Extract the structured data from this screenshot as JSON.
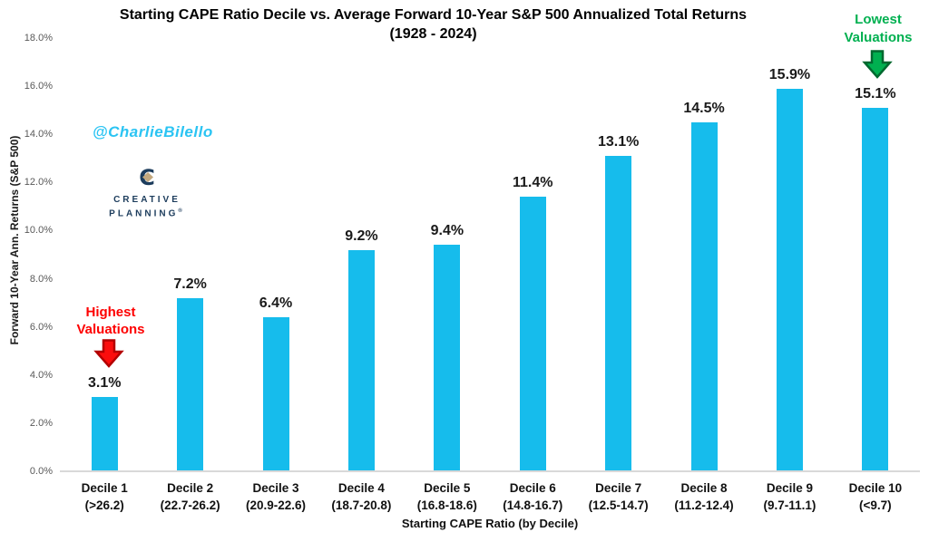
{
  "chart_data": {
    "type": "bar",
    "title": "Starting CAPE Ratio Decile vs. Average Forward 10-Year S&P 500 Annualized Total Returns",
    "subtitle": "(1928 - 2024)",
    "xlabel": "Starting CAPE Ratio (by Decile)",
    "ylabel": "Forward 10-Year Ann. Returns (S&P 500)",
    "categories": [
      "Decile 1",
      "Decile 2",
      "Decile 3",
      "Decile 4",
      "Decile 5",
      "Decile 6",
      "Decile 7",
      "Decile 8",
      "Decile 9",
      "Decile 10"
    ],
    "category_ranges": [
      "(>26.2)",
      "(22.7-26.2)",
      "(20.9-22.6)",
      "(18.7-20.8)",
      "(16.8-18.6)",
      "(14.8-16.7)",
      "(12.5-14.7)",
      "(11.2-12.4)",
      "(9.7-11.1)",
      "(<9.7)"
    ],
    "values": [
      3.1,
      7.2,
      6.4,
      9.2,
      9.4,
      11.4,
      13.1,
      14.5,
      15.9,
      15.1
    ],
    "value_labels": [
      "3.1%",
      "7.2%",
      "6.4%",
      "9.2%",
      "9.4%",
      "11.4%",
      "13.1%",
      "14.5%",
      "15.9%",
      "15.1%"
    ],
    "ylim": [
      0,
      18
    ],
    "ytick_step": 2,
    "yticks": [
      "0.0%",
      "2.0%",
      "4.0%",
      "6.0%",
      "8.0%",
      "10.0%",
      "12.0%",
      "14.0%",
      "16.0%",
      "18.0%"
    ],
    "grid": false,
    "legend": "none",
    "bar_color": "#16bcec"
  },
  "annotations": {
    "highest": {
      "line1": "Highest",
      "line2": "Valuations",
      "text_color": "#fe0000",
      "arrow_fill": "#fb0d0d",
      "arrow_stroke": "#b30000"
    },
    "lowest": {
      "line1": "Lowest",
      "line2": "Valuations",
      "text_color": "#00b050",
      "arrow_fill": "#00b050",
      "arrow_stroke": "#00682f"
    }
  },
  "watermark": {
    "handle": "@CharlieBilello",
    "color": "#2bc4f3"
  },
  "logo": {
    "monogram": "C",
    "line1": "CREATIVE",
    "line2": "PLANNING",
    "registered": "®",
    "navy": "#1c3c5c",
    "gold": "#c3a87e"
  }
}
